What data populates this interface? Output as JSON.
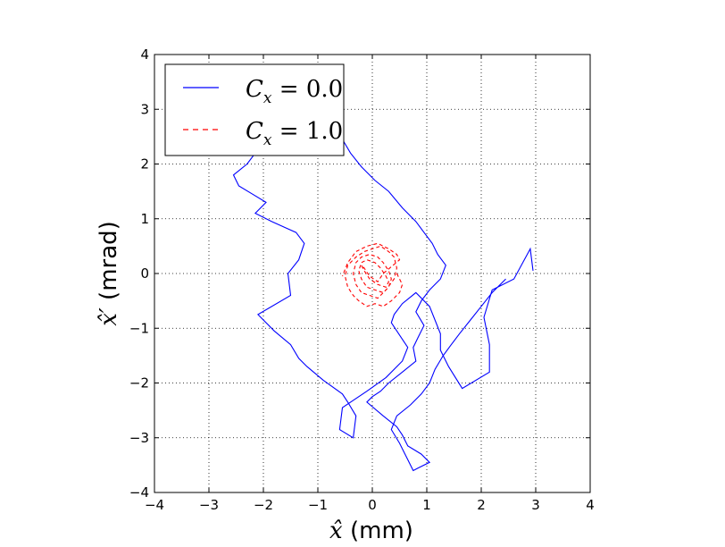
{
  "chart_data": {
    "type": "line",
    "xlabel": {
      "sym": "x̂",
      "unit": " (mm)"
    },
    "ylabel": {
      "sym": "x̂′",
      "unit": " (mrad)"
    },
    "xlim": [
      -4,
      4
    ],
    "ylim": [
      -4,
      4
    ],
    "xticks": [
      "−4",
      "−3",
      "−2",
      "−1",
      "0",
      "1",
      "2",
      "3",
      "4"
    ],
    "yticks": [
      "−4",
      "−3",
      "−2",
      "−1",
      "0",
      "1",
      "2",
      "3",
      "4"
    ],
    "grid": true,
    "legend_position": "top-left",
    "series": [
      {
        "name": "C_x = 0.0",
        "legend": {
          "main": "C",
          "sub": "x",
          "rest": " = 0.0"
        },
        "color": "#0000ff",
        "style": "solid",
        "x": [
          2.95,
          2.9,
          2.6,
          2.2,
          2.05,
          2.15,
          2.15,
          1.65,
          1.4,
          1.25,
          1.25,
          1.05,
          0.8,
          0.55,
          0.4,
          0.35,
          0.65,
          0.55,
          0.25,
          -0.1,
          -0.55,
          -0.6,
          -0.35,
          -0.3,
          -0.45,
          -0.55,
          -0.9,
          -1.2,
          -1.35,
          -1.5,
          -1.8,
          -2.1,
          -1.5,
          -1.55,
          -1.35,
          -1.25,
          -1.4,
          -1.85,
          -2.15,
          -1.95,
          -2.2,
          -2.45,
          -2.55,
          -2.3,
          -2.15,
          -2.25,
          -2.4,
          -2.5,
          -2.2,
          -1.9,
          -1.55,
          -1.25,
          -1.1,
          -1.0,
          -0.85,
          -0.65,
          -0.55,
          -0.4,
          -0.2,
          0.05,
          0.3,
          0.55,
          0.8,
          0.95,
          1.1,
          1.2,
          1.35,
          1.25,
          1.05,
          0.9,
          0.8,
          0.95,
          0.85,
          0.75,
          0.8,
          0.55,
          0.3,
          0.15,
          0.0,
          -0.1,
          0.2,
          0.45,
          0.55,
          0.65,
          0.9,
          1.05,
          0.85,
          0.75,
          0.65,
          0.5,
          0.35,
          0.45,
          0.7,
          0.9,
          1.05,
          1.15,
          1.3,
          1.45,
          1.6,
          1.8,
          2.0,
          2.2,
          2.45
        ],
        "y": [
          0.05,
          0.45,
          -0.1,
          -0.3,
          -0.8,
          -1.3,
          -1.8,
          -2.1,
          -1.7,
          -1.4,
          -1.1,
          -0.6,
          -0.35,
          -0.55,
          -0.75,
          -0.9,
          -1.35,
          -1.6,
          -1.9,
          -2.15,
          -2.45,
          -2.85,
          -3.0,
          -2.6,
          -2.35,
          -2.2,
          -1.95,
          -1.7,
          -1.55,
          -1.3,
          -1.05,
          -0.75,
          -0.4,
          0.0,
          0.25,
          0.55,
          0.75,
          0.95,
          1.1,
          1.3,
          1.45,
          1.6,
          1.8,
          2.0,
          2.2,
          2.4,
          2.6,
          2.9,
          3.1,
          3.25,
          3.5,
          3.55,
          3.35,
          3.1,
          2.9,
          2.65,
          2.45,
          2.2,
          1.95,
          1.7,
          1.5,
          1.2,
          0.95,
          0.75,
          0.55,
          0.35,
          0.15,
          -0.1,
          -0.3,
          -0.5,
          -0.7,
          -0.95,
          -1.15,
          -1.35,
          -1.6,
          -1.8,
          -2.0,
          -2.15,
          -2.25,
          -2.35,
          -2.6,
          -2.8,
          -2.95,
          -3.15,
          -3.3,
          -3.45,
          -3.55,
          -3.6,
          -3.4,
          -3.1,
          -2.85,
          -2.6,
          -2.4,
          -2.2,
          -2.0,
          -1.75,
          -1.5,
          -1.3,
          -1.1,
          -0.85,
          -0.6,
          -0.35,
          -0.1
        ]
      },
      {
        "name": "C_x = 1.0",
        "legend": {
          "main": "C",
          "sub": "x",
          "rest": " = 1.0"
        },
        "color": "#ff0000",
        "style": "dashed",
        "x": [
          0.45,
          0.55,
          0.5,
          0.35,
          0.2,
          0.05,
          -0.1,
          -0.25,
          -0.35,
          -0.45,
          -0.5,
          -0.45,
          -0.3,
          -0.15,
          0.0,
          0.15,
          0.3,
          0.4,
          0.45,
          0.4,
          0.25,
          0.1,
          -0.05,
          -0.2,
          -0.3,
          -0.35,
          -0.3,
          -0.2,
          -0.05,
          0.1,
          0.2,
          0.3,
          0.35,
          0.3,
          0.2,
          0.05,
          -0.1,
          -0.2,
          -0.25,
          -0.2,
          -0.1,
          0.05,
          0.15,
          0.25,
          0.3,
          0.25,
          0.1,
          -0.05,
          -0.15,
          -0.2,
          -0.15,
          -0.05,
          0.1,
          0.2,
          0.5,
          0.45,
          0.3,
          0.1,
          -0.1,
          -0.3,
          -0.45,
          -0.55
        ],
        "y": [
          0.0,
          -0.2,
          -0.35,
          -0.5,
          -0.6,
          -0.55,
          -0.6,
          -0.5,
          -0.4,
          -0.25,
          -0.05,
          0.15,
          0.3,
          0.4,
          0.45,
          0.5,
          0.4,
          0.3,
          0.1,
          -0.1,
          -0.3,
          -0.45,
          -0.4,
          -0.35,
          -0.2,
          0.0,
          0.2,
          0.3,
          0.35,
          0.3,
          0.2,
          0.05,
          -0.1,
          -0.25,
          -0.35,
          -0.3,
          -0.25,
          -0.1,
          0.05,
          0.2,
          0.25,
          0.2,
          0.1,
          -0.05,
          -0.15,
          -0.25,
          -0.2,
          -0.1,
          0.05,
          0.15,
          0.1,
          -0.05,
          -0.15,
          0.0,
          0.25,
          0.35,
          0.45,
          0.55,
          0.5,
          0.4,
          0.2,
          -0.05
        ]
      }
    ]
  }
}
